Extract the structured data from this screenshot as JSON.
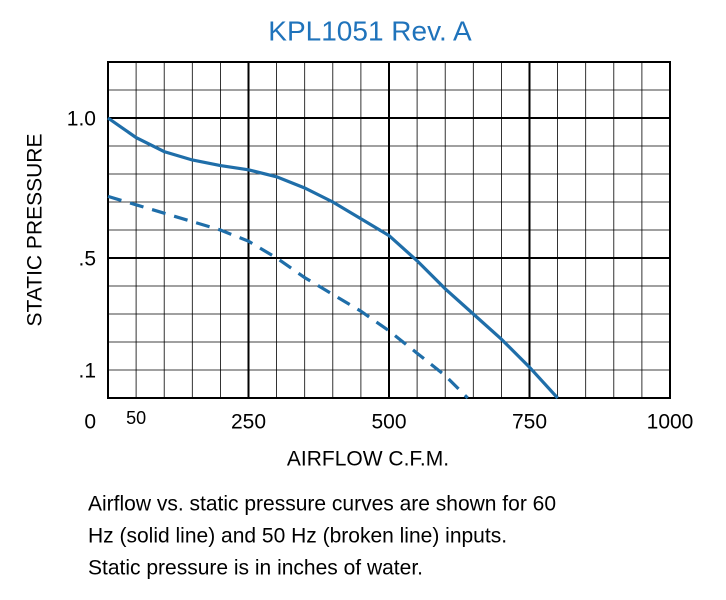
{
  "chart_data": {
    "type": "line",
    "title": "KPL1051 Rev. A",
    "xlabel": "AIRFLOW C.F.M.",
    "ylabel": "STATIC PRESSURE",
    "xlim": [
      0,
      1000
    ],
    "ylim": [
      0,
      1.2
    ],
    "xticks": [
      0,
      50,
      250,
      500,
      750,
      1000
    ],
    "yticks": [
      {
        "value": 0.1,
        "label": ".1"
      },
      {
        "value": 0.5,
        "label": ".5"
      },
      {
        "value": 1,
        "label": "1.0"
      }
    ],
    "grid": true,
    "minor_grid": {
      "x": 50,
      "y": 0.1
    },
    "major_grid": {
      "x": 250,
      "y": 0.5
    },
    "series": [
      {
        "color": "#1f6ea9",
        "line_style": "solid",
        "x": [
          0,
          50,
          100,
          150,
          200,
          250,
          300,
          350,
          400,
          450,
          500,
          550,
          600,
          650,
          700,
          750,
          800
        ],
        "values": [
          1.0,
          0.93,
          0.88,
          0.85,
          0.83,
          0.815,
          0.79,
          0.75,
          0.7,
          0.64,
          0.58,
          0.49,
          0.39,
          0.3,
          0.21,
          0.11,
          0.0
        ]
      },
      {
        "color": "#1f6ea9",
        "line_style": "dashed",
        "x": [
          0,
          50,
          100,
          150,
          200,
          250,
          300,
          350,
          400,
          450,
          500,
          550,
          600,
          640
        ],
        "values": [
          0.72,
          0.69,
          0.66,
          0.63,
          0.6,
          0.56,
          0.5,
          0.43,
          0.37,
          0.31,
          0.24,
          0.16,
          0.08,
          0.0
        ]
      }
    ],
    "caption": [
      "Airflow vs. static pressure curves are shown for 60",
      "Hz (solid line) and 50 Hz (broken line) inputs.",
      "Static pressure is in inches of water."
    ]
  }
}
